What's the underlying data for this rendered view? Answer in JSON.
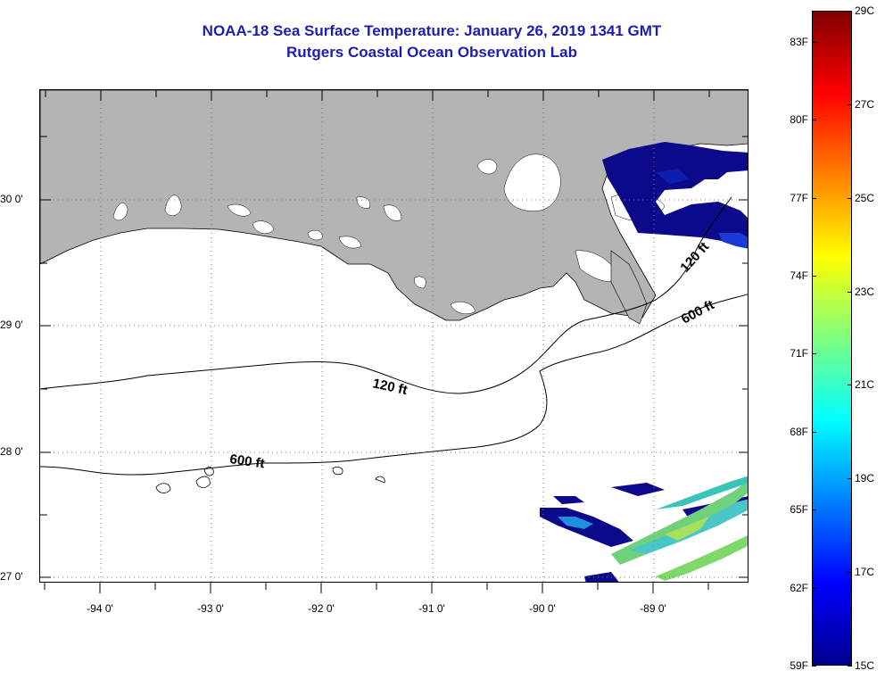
{
  "title": {
    "line1": "NOAA-18 Sea Surface Temperature:  January 26, 2019 1341 GMT",
    "line2": "Rutgers Coastal Ocean Observation Lab"
  },
  "map": {
    "longitude_labels": [
      "-94 0'",
      "-93 0'",
      "-92 0'",
      "-91 0'",
      "-90 0'",
      "-89 0'"
    ],
    "latitude_labels": [
      "30 0'",
      "29 0'",
      "28 0'",
      "27 0'"
    ],
    "contour_labels": {
      "shelf_120_west": "120 ft",
      "shelf_120_east": "120 ft",
      "slope_600_west": "600 ft",
      "slope_600_east": "600 ft"
    },
    "colors": {
      "land": "#b4b4b4",
      "cloud_mask": "#ffffff",
      "frame": "#000000"
    }
  },
  "colorbar": {
    "fahrenheit_labels": [
      "83F",
      "80F",
      "77F",
      "74F",
      "71F",
      "68F",
      "65F",
      "62F",
      "59F"
    ],
    "celsius_labels": [
      "29C",
      "27C",
      "25C",
      "23C",
      "21C",
      "19C",
      "17C",
      "15C"
    ],
    "range_c": [
      15,
      29
    ],
    "range_f": [
      59,
      84.2
    ],
    "colormap": "jet"
  }
}
